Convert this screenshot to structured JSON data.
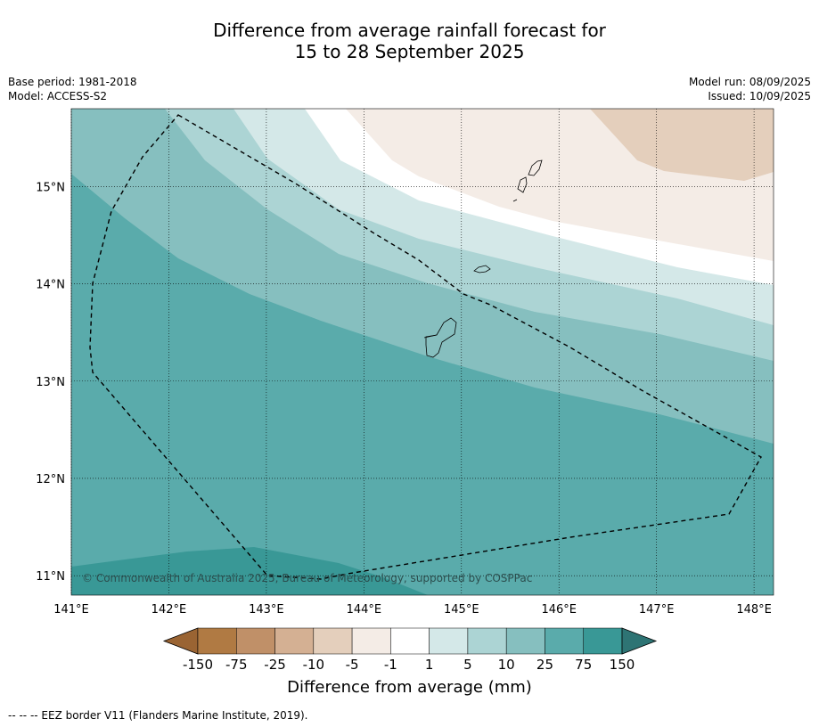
{
  "title": {
    "line1": "Difference from average rainfall forecast for",
    "line2": "15 to 28 September 2025"
  },
  "meta": {
    "base_period": "Base period: 1981-2018",
    "model": "Model: ACCESS-S2",
    "model_run": "Model run: 08/09/2025",
    "issued": "Issued: 10/09/2025"
  },
  "copyright": "© Commonwealth of Australia 2025, Bureau of Meteorology, supported by COSPPac",
  "footer": "-- -- -- EEZ border V11 (Flanders Marine Institute, 2019).",
  "chart_data": {
    "type": "heatmap",
    "title": "Difference from average rainfall forecast for 15 to 28 September 2025",
    "xlabel": "",
    "ylabel": "",
    "x_ticks": [
      141,
      142,
      143,
      144,
      145,
      146,
      147,
      148
    ],
    "x_tick_labels": [
      "141°E",
      "142°E",
      "143°E",
      "144°E",
      "145°E",
      "146°E",
      "147°E",
      "148°E"
    ],
    "y_ticks": [
      11,
      12,
      13,
      14,
      15
    ],
    "y_tick_labels": [
      "11°N",
      "12°N",
      "13°N",
      "14°N",
      "15°N"
    ],
    "xlim": [
      141,
      148.2
    ],
    "ylim": [
      10.8,
      15.8
    ],
    "grid": true,
    "colorbar": {
      "label": "Difference from average (mm)",
      "tick_labels": [
        "-150",
        "-75",
        "-25",
        "-10",
        "-5",
        "-1",
        "1",
        "5",
        "10",
        "25",
        "75",
        "150"
      ],
      "colors": [
        "#9a6433",
        "#b07a43",
        "#c09068",
        "#d4b093",
        "#e4cfbc",
        "#f4ece6",
        "#ffffff",
        "#d4e8e8",
        "#acd4d4",
        "#86bfbf",
        "#5aabab",
        "#399896",
        "#2e7474"
      ]
    },
    "bands": [
      {
        "range": "-10 to -5",
        "color": "#e4cfbc"
      },
      {
        "range": "-5 to -1",
        "color": "#f4ece6"
      },
      {
        "range": "-1 to 1",
        "color": "#ffffff"
      },
      {
        "range": "1 to 5",
        "color": "#d4e8e8"
      },
      {
        "range": "5 to 10",
        "color": "#acd4d4"
      },
      {
        "range": "10 to 25",
        "color": "#86bfbf"
      },
      {
        "range": "25 to 75",
        "color": "#5aabab"
      },
      {
        "range": "75 to 150",
        "color": "#399896"
      }
    ],
    "legend": "bottom"
  }
}
